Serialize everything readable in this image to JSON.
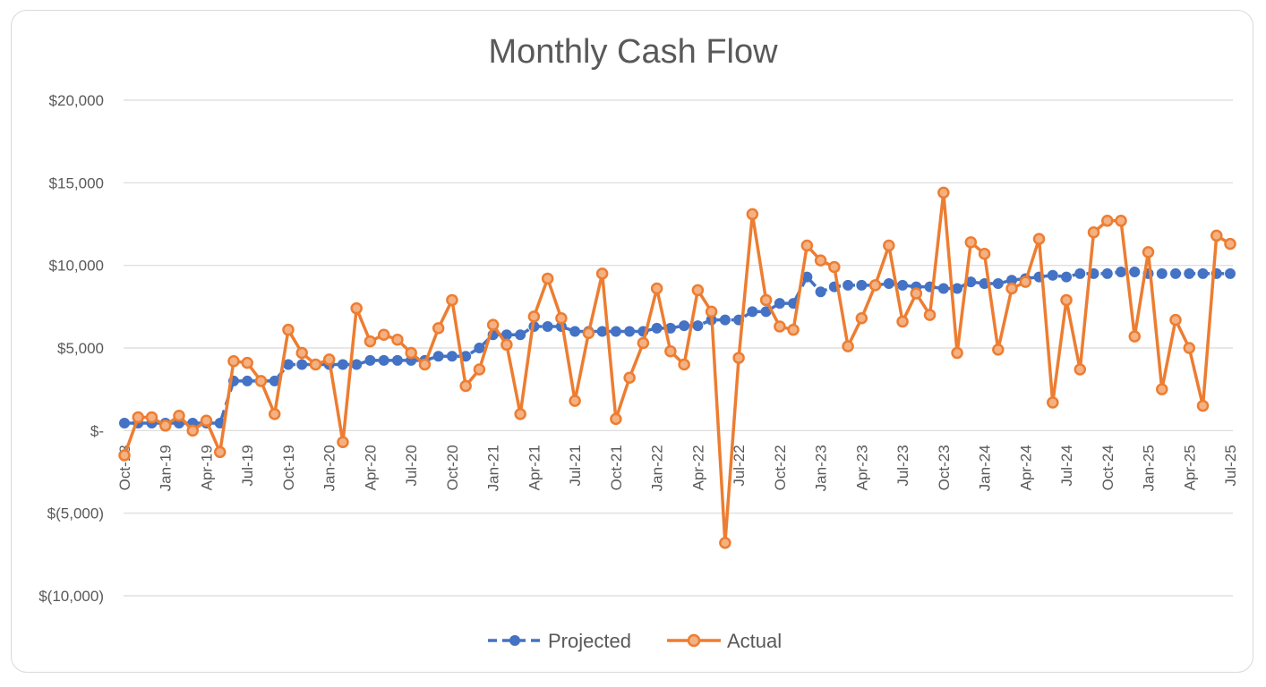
{
  "chart_data": {
    "type": "line",
    "title": "Monthly Cash Flow",
    "xlabel": "",
    "ylabel": "",
    "ylim": [
      -10000,
      20000
    ],
    "y_ticks": [
      {
        "value": 20000,
        "label": "$20,000"
      },
      {
        "value": 15000,
        "label": "$15,000"
      },
      {
        "value": 10000,
        "label": "$10,000"
      },
      {
        "value": 5000,
        "label": "$5,000"
      },
      {
        "value": 0,
        "label": "$-"
      },
      {
        "value": -5000,
        "label": "$(5,000)"
      },
      {
        "value": -10000,
        "label": "$(10,000)"
      }
    ],
    "grid": true,
    "legend_position": "bottom",
    "categories": [
      "Oct-18",
      "Nov-18",
      "Dec-18",
      "Jan-19",
      "Feb-19",
      "Mar-19",
      "Apr-19",
      "May-19",
      "Jun-19",
      "Jul-19",
      "Aug-19",
      "Sep-19",
      "Oct-19",
      "Nov-19",
      "Dec-19",
      "Jan-20",
      "Feb-20",
      "Mar-20",
      "Apr-20",
      "May-20",
      "Jun-20",
      "Jul-20",
      "Aug-20",
      "Sep-20",
      "Oct-20",
      "Nov-20",
      "Dec-20",
      "Jan-21",
      "Feb-21",
      "Mar-21",
      "Apr-21",
      "May-21",
      "Jun-21",
      "Jul-21",
      "Aug-21",
      "Sep-21",
      "Oct-21",
      "Nov-21",
      "Dec-21",
      "Jan-22",
      "Feb-22",
      "Mar-22",
      "Apr-22",
      "May-22",
      "Jun-22",
      "Jul-22",
      "Aug-22",
      "Sep-22",
      "Oct-22",
      "Nov-22",
      "Dec-22",
      "Jan-23",
      "Feb-23",
      "Mar-23",
      "Apr-23",
      "May-23",
      "Jun-23",
      "Jul-23",
      "Aug-23",
      "Sep-23",
      "Oct-23",
      "Nov-23",
      "Dec-23",
      "Jan-24",
      "Feb-24",
      "Mar-24",
      "Apr-24",
      "May-24",
      "Jun-24",
      "Jul-24",
      "Aug-24",
      "Sep-24",
      "Oct-24",
      "Nov-24",
      "Dec-24",
      "Jan-25",
      "Feb-25",
      "Mar-25",
      "Apr-25",
      "May-25",
      "Jun-25",
      "Jul-25"
    ],
    "visible_tick_labels": [
      "Oct-18",
      "Jan-19",
      "Apr-19",
      "Jul-19",
      "Oct-19",
      "Jan-20",
      "Apr-20",
      "Jul-20",
      "Oct-20",
      "Jan-21",
      "Apr-21",
      "Jul-21",
      "Oct-21",
      "Jan-22",
      "Apr-22",
      "Jul-22",
      "Oct-22",
      "Jan-23",
      "Apr-23",
      "Jul-23",
      "Oct-23",
      "Jan-24",
      "Apr-24",
      "Jul-24",
      "Oct-24",
      "Jan-25",
      "Apr-25",
      "Jul-25"
    ],
    "series": [
      {
        "name": "Projected",
        "color": "#4472C4",
        "style": "dashed",
        "values": [
          450,
          450,
          450,
          450,
          450,
          450,
          450,
          450,
          3000,
          3000,
          3000,
          3000,
          4000,
          4000,
          4000,
          4000,
          4000,
          4000,
          4250,
          4250,
          4250,
          4250,
          4250,
          4500,
          4500,
          4500,
          5000,
          5800,
          5800,
          5800,
          6300,
          6300,
          6300,
          6000,
          6000,
          6000,
          6000,
          6000,
          6000,
          6200,
          6200,
          6350,
          6350,
          6700,
          6700,
          6700,
          7200,
          7200,
          7700,
          7700,
          9300,
          8400,
          8700,
          8800,
          8800,
          8800,
          8900,
          8800,
          8700,
          8700,
          8600,
          8600,
          9000,
          8900,
          8900,
          9100,
          9200,
          9300,
          9400,
          9300,
          9500,
          9500,
          9500,
          9600,
          9600,
          9500,
          9500,
          9500,
          9500,
          9500,
          9500,
          9500
        ]
      },
      {
        "name": "Actual",
        "color": "#ED7D31",
        "style": "solid",
        "values": [
          -1500,
          800,
          800,
          300,
          900,
          0,
          600,
          -1300,
          4200,
          4100,
          3000,
          1000,
          6100,
          4700,
          4000,
          4300,
          -700,
          7400,
          5400,
          5800,
          5500,
          4700,
          4000,
          6200,
          7900,
          2700,
          3700,
          6400,
          5200,
          1000,
          6900,
          9200,
          6800,
          1800,
          5900,
          9500,
          700,
          3200,
          5300,
          8600,
          4800,
          4000,
          8500,
          7200,
          -6800,
          4400,
          13100,
          7900,
          6300,
          6100,
          11200,
          10300,
          9900,
          5100,
          6800,
          8800,
          11200,
          6600,
          8300,
          7000,
          14400,
          4700,
          11400,
          10700,
          4900,
          8600,
          9000,
          11600,
          1700,
          7900,
          3700,
          12000,
          12700,
          12700,
          5700,
          10800,
          2500,
          6700,
          5000,
          1500,
          11800,
          11300
        ]
      }
    ]
  }
}
